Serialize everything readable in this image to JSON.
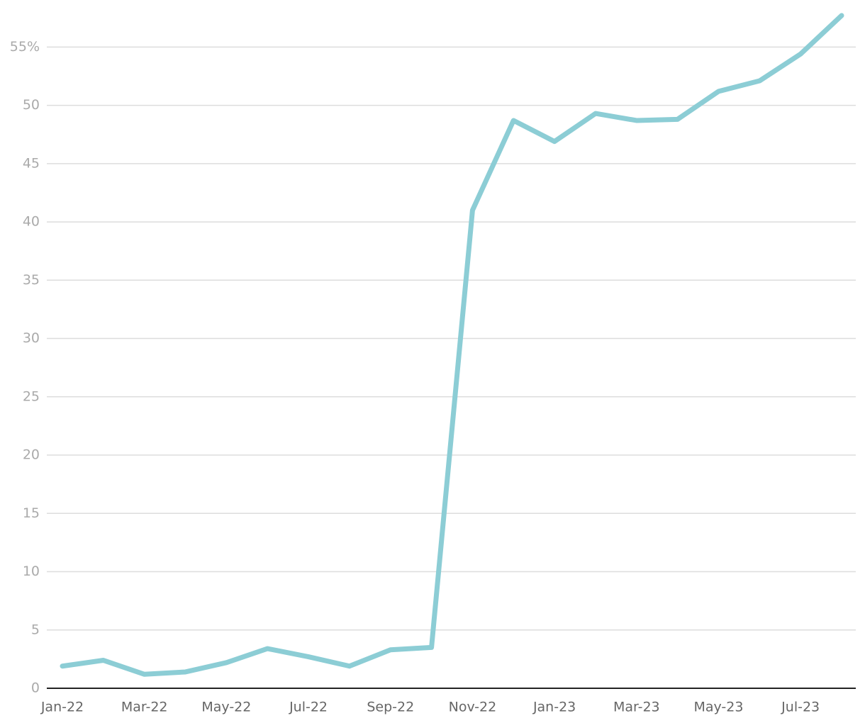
{
  "chart_data": {
    "type": "line",
    "categories": [
      "Jan-22",
      null,
      "Mar-22",
      null,
      "May-22",
      null,
      "Jul-22",
      null,
      "Sep-22",
      null,
      "Nov-22",
      null,
      "Jan-23",
      null,
      "Mar-23",
      null,
      "May-23",
      null,
      "Jul-23",
      null
    ],
    "values": [
      1.9,
      2.4,
      1.2,
      1.4,
      2.2,
      3.4,
      2.7,
      1.9,
      3.3,
      3.5,
      41.0,
      48.7,
      46.9,
      49.3,
      48.7,
      48.8,
      51.2,
      52.1,
      54.4,
      57.7
    ],
    "color": "#8ccdd5",
    "ylim": [
      0,
      58
    ],
    "yticks": [
      0,
      5,
      10,
      15,
      20,
      25,
      30,
      35,
      40,
      45,
      50,
      {
        "value": 55,
        "label": "55%"
      }
    ],
    "grid": true
  }
}
